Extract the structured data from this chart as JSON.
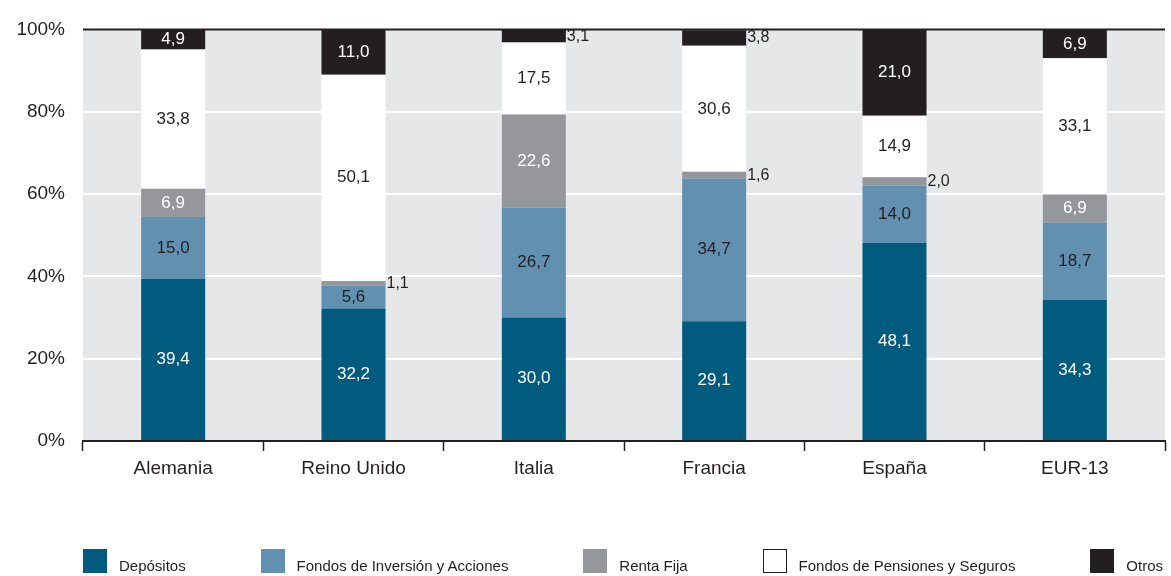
{
  "chart_data": {
    "type": "bar",
    "stacked": true,
    "categories": [
      "Alemania",
      "Reino Unido",
      "Italia",
      "Francia",
      "España",
      "EUR-13"
    ],
    "series": [
      {
        "name": "Depósitos",
        "color": "#005b7f",
        "values": [
          39.4,
          32.2,
          30.0,
          29.1,
          48.1,
          34.3
        ],
        "value_labels": [
          "39,4",
          "32,2",
          "30,0",
          "29,1",
          "48,1",
          "34,3"
        ]
      },
      {
        "name": "Fondos de Inversión y Acciones",
        "color": "#6290b0",
        "values": [
          15.0,
          5.6,
          26.7,
          34.7,
          14.0,
          18.7
        ],
        "value_labels": [
          "15,0",
          "5,6",
          "26,7",
          "34,7",
          "14,0",
          "18,7"
        ]
      },
      {
        "name": "Renta Fija",
        "color": "#96979b",
        "values": [
          6.9,
          1.1,
          22.6,
          1.6,
          2.0,
          6.9
        ],
        "value_labels": [
          "6,9",
          "1,1",
          "22,6",
          "1,6",
          "2,0",
          "6,9"
        ]
      },
      {
        "name": "Fondos de Pensiones y Seguros",
        "color": "#ffffff",
        "values": [
          33.8,
          50.1,
          17.5,
          30.6,
          14.9,
          33.1
        ],
        "value_labels": [
          "33,8",
          "50,1",
          "17,5",
          "30,6",
          "14,9",
          "33,1"
        ]
      },
      {
        "name": "Otros",
        "color": "#231f20",
        "values": [
          4.9,
          11.0,
          3.1,
          3.8,
          21.0,
          6.9
        ],
        "value_labels": [
          "4,9",
          "11,0",
          "3,1",
          "3,8",
          "21,0",
          "6,9"
        ]
      }
    ],
    "ylim": [
      0,
      100
    ],
    "yticks": [
      {
        "value": 0,
        "label": "0%"
      },
      {
        "value": 20,
        "label": "20%"
      },
      {
        "value": 40,
        "label": "40%"
      },
      {
        "value": 60,
        "label": "60%"
      },
      {
        "value": 80,
        "label": "80%"
      },
      {
        "value": 100,
        "label": "100%"
      }
    ],
    "grid": "y",
    "legend": "bottom"
  }
}
